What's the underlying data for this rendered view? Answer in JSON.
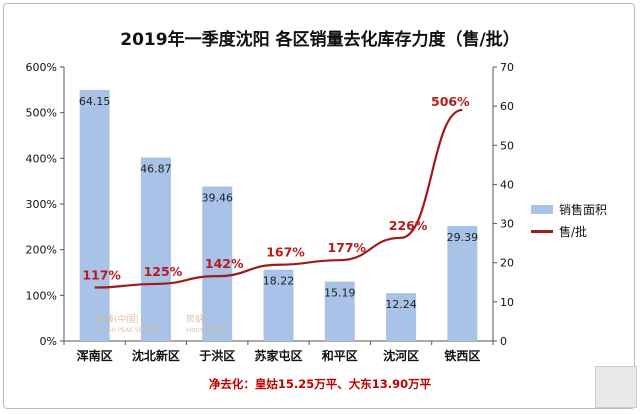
{
  "chart_data": {
    "type": "bar",
    "title": "2019年一季度沈阳 各区销量去化库存力度（售/批）",
    "categories": [
      "浑南区",
      "沈北新区",
      "于洪区",
      "苏家屯区",
      "和平区",
      "沈河区",
      "铁西区"
    ],
    "series": [
      {
        "name": "销售面积",
        "type": "bar",
        "axis": "left",
        "values": [
          64.15,
          46.87,
          39.46,
          18.22,
          15.19,
          12.24,
          29.39
        ],
        "value_labels": [
          "64.15",
          "46.87",
          "39.46",
          "18.22",
          "15.19",
          "12.24",
          "29.39"
        ]
      },
      {
        "name": "售/批",
        "type": "line",
        "axis": "left",
        "values": [
          117,
          125,
          142,
          167,
          177,
          226,
          506
        ],
        "value_labels": [
          "117%",
          "125%",
          "142%",
          "167%",
          "177%",
          "226%",
          "506%"
        ]
      }
    ],
    "y_left": {
      "ylim": [
        0,
        600
      ],
      "ticks": [
        "0%",
        "100%",
        "200%",
        "300%",
        "400%",
        "500%",
        "600%"
      ]
    },
    "y_right": {
      "ylim": [
        0,
        70
      ],
      "ticks": [
        "0",
        "10",
        "20",
        "30",
        "40",
        "50",
        "60",
        "70"
      ]
    },
    "grid": false,
    "legend_position": "right",
    "annotation": "净去化：皇姑15.25万平、大东13.90万平",
    "colors": {
      "bar": "#a9c3e8",
      "line": "#9e1b1b",
      "line_label": "#b71c1c",
      "annotation": "#c00000"
    }
  },
  "watermarks": [
    "新峰(中国)",
    "FRESH PEAK SERVICE",
    "房掂",
    "House-Book"
  ]
}
